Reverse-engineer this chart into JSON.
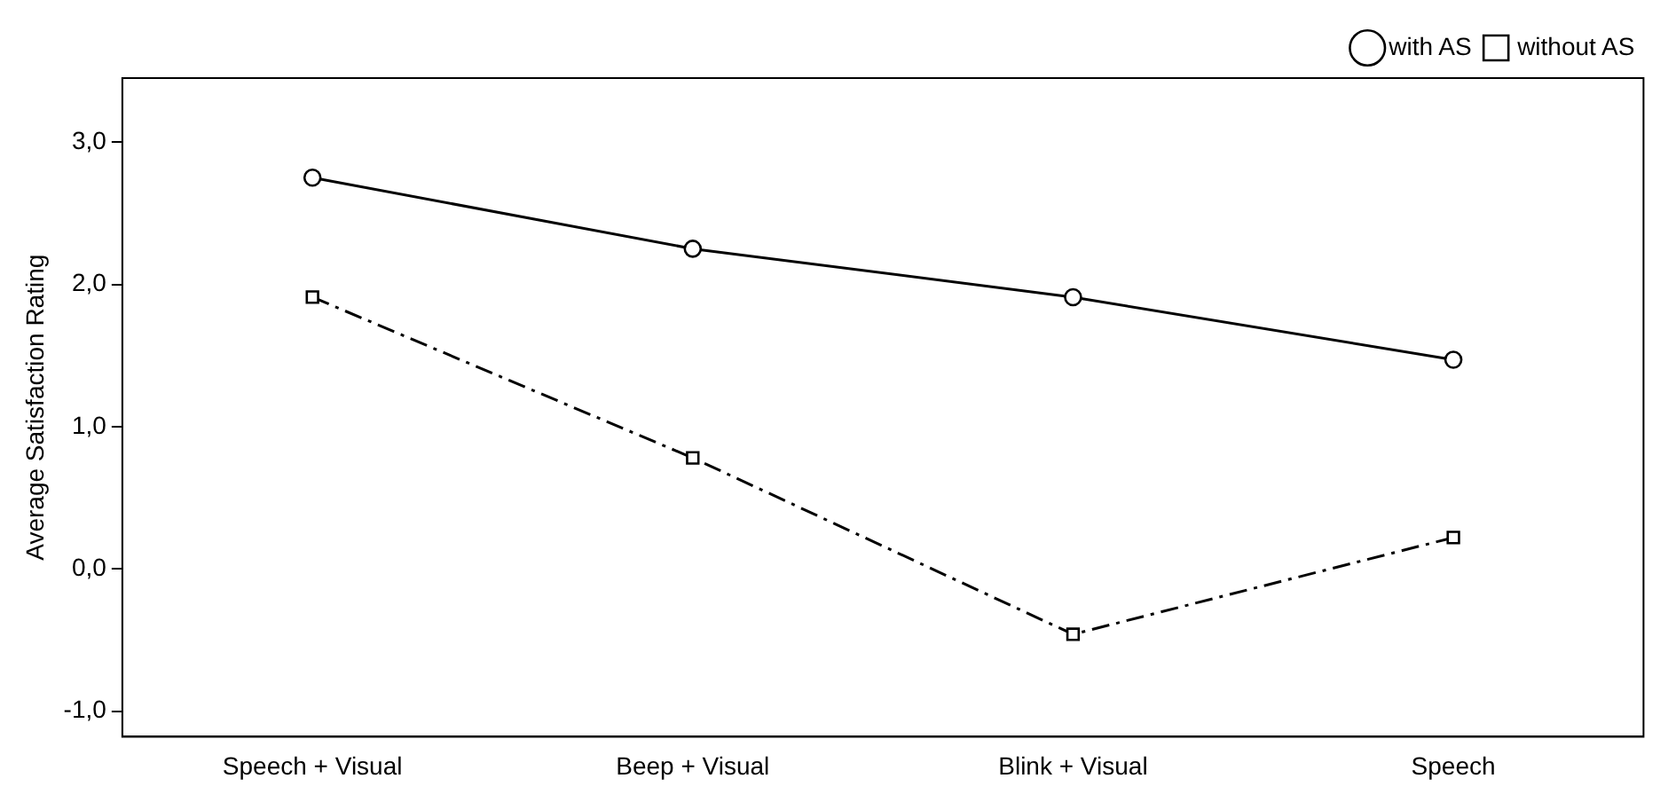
{
  "chart_data": {
    "type": "line",
    "ylabel": "Average Satisfaction Rating",
    "categories": [
      "Speech + Visual",
      "Beep + Visual",
      "Blink + Visual",
      "Speech"
    ],
    "series": [
      {
        "name": "with AS",
        "color": "#000000",
        "marker": "circle",
        "line_style": "solid",
        "values": [
          2.75,
          2.25,
          1.91,
          1.47
        ]
      },
      {
        "name": "without AS",
        "color": "#000000",
        "marker": "square",
        "line_style": "dashed",
        "values": [
          1.91,
          0.78,
          -0.46,
          0.22
        ]
      }
    ],
    "ylim": [
      -1.18,
      3.45
    ],
    "yticks": [
      {
        "value": -1,
        "label": "-1,0"
      },
      {
        "value": 0,
        "label": "0,0"
      },
      {
        "value": 1,
        "label": "1,0"
      },
      {
        "value": 2,
        "label": "2,0"
      },
      {
        "value": 3,
        "label": "3,0"
      }
    ],
    "grid": false,
    "legend": "top right"
  }
}
